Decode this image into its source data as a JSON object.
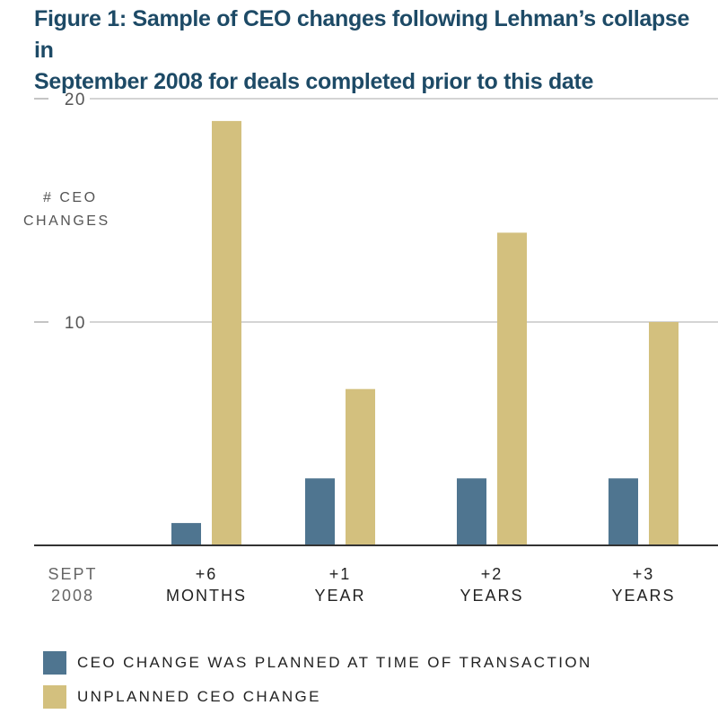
{
  "title_lines": [
    "Figure 1: Sample of CEO changes following Lehman’s collapse in",
    "September 2008 for deals completed prior to this date"
  ],
  "colors": {
    "planned": "#4f7590",
    "unplanned": "#d3c07e",
    "grid": "#bbbbbb",
    "title": "#1d4a66"
  },
  "chart_data": {
    "type": "bar",
    "title": "Figure 1: Sample of CEO changes following Lehman’s collapse in September 2008 for deals completed prior to this date",
    "ylabel_lines": [
      "# CEO",
      "CHANGES"
    ],
    "ylim": [
      0,
      20
    ],
    "yticks": [
      10,
      20
    ],
    "origin_label_lines": [
      "SEPT",
      "2008"
    ],
    "categories": [
      {
        "lines": [
          "+6",
          "MONTHS"
        ]
      },
      {
        "lines": [
          "+1",
          "YEAR"
        ]
      },
      {
        "lines": [
          "+2",
          "YEARS"
        ]
      },
      {
        "lines": [
          "+3",
          "YEARS"
        ]
      }
    ],
    "series": [
      {
        "name": "CEO CHANGE WAS PLANNED AT TIME OF TRANSACTION",
        "color": "#4f7590",
        "values": [
          1,
          3,
          3,
          3
        ]
      },
      {
        "name": "UNPLANNED CEO CHANGE",
        "color": "#d3c07e",
        "values": [
          19,
          7,
          14,
          10
        ]
      }
    ],
    "grid": true,
    "legend": "bottom-left"
  }
}
